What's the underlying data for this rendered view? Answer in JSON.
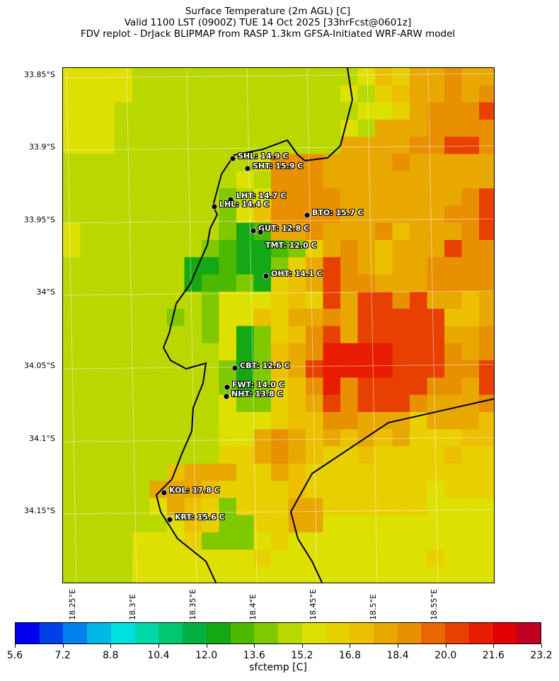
{
  "title": {
    "line1": "Surface Temperature (2m AGL) [C]",
    "line2": "Valid 1100 LST (0900Z) TUE 14 Oct 2025 [33hrFcst@0601z]",
    "line3": "FDV replot - DrJack BLIPMAP from RASP 1.3km GFSA-Initiated WRF-ARW model"
  },
  "lat_labels": [
    "33.85°S",
    "33.9°S",
    "33.95°S",
    "34°S",
    "34.05°S",
    "34.1°S",
    "34.15°S"
  ],
  "lon_labels": [
    "18.25°E",
    "18.3°E",
    "18.35°E",
    "18.4°E",
    "18.45°E",
    "18.5°E",
    "18.55°E"
  ],
  "colorbar": {
    "label": "sfctemp [C]",
    "ticks": [
      "5.6",
      "7.2",
      "8.8",
      "10.4",
      "12.0",
      "13.6",
      "15.2",
      "16.8",
      "18.4",
      "20.0",
      "21.6",
      "23.2"
    ],
    "colors": [
      "#0000ee",
      "#0040e8",
      "#0080ee",
      "#00b8e8",
      "#00e0dc",
      "#00d8a8",
      "#00c870",
      "#00b040",
      "#14a814",
      "#4cb800",
      "#80c800",
      "#b8d800",
      "#dde000",
      "#e8d000",
      "#ecc000",
      "#e8a800",
      "#e89000",
      "#e86800",
      "#e84000",
      "#e81c00",
      "#e00000",
      "#c00020"
    ]
  },
  "temperature_bins_legend": {
    "G": 8,
    "g": 9,
    "L": 10,
    "B": 11,
    "Y": 12,
    "y": 13,
    "o": 14,
    "O": 15,
    "a": 16,
    "r": 17,
    "R": 18,
    "X": 19
  },
  "temperature_grid": [
    "YYYYBBBBBBBBBBBBBYoyOOaOOa",
    "YYYYBBBBBBBBBBBBYByoOOaOaa",
    "YYYBBBBBBBBBBBBBBYYyOaaaRa",
    "YYYBBBBBBBBBBBBBYBOOOaaaaa",
    "YYYBBBBBBBBBBBBBOOOOaaRRaa",
    "BBBBBBBBBBBYaaaOOOOaOOOOO",
    "BBBBBBBBBBYBaaaOOOOOOOOOO",
    "BBBBBBBBBLBYaaaaOOOOOOOaR",
    "BBBBBBBBBLYoaaaaOOOOOOaaR",
    "YBBBBBBBBLGgOOaOOOaoOOOaR",
    "YBBBBBBBLgGGgLyOaOoOOORaa",
    "BBBBBBBGGgGGLyORaOoOOaaaa",
    "BBBBBBBGggLGyoORaaOOOaaaa",
    "BBBBBBBBLYYYyoyRORRaROOoO",
    "BBBBBBLBLYYoyOOaORRRRRooO",
    "BBBBBBBBLYGLyoaRORRRRROOa",
    "BBBBBBBBBYGLoOaXXXXRRRaOa",
    "BBBBBBBBBLGLoORXXXXRRRaaR",
    "BBBBBBBBBLGLyoaXaRRRRaaOR",
    "BBBBBBBBBYLLyoORaRRRaOOOa",
    "BBBBBBBBBYYYyooaaOOOyOOOo",
    "BBBBBBBBBYYOaOoOoOoOyyyoo",
    "BBBBBBBBByyOaOoyyoyyyyoyy",
    "BBBBBBoOOOyyOoyyyyyyyyyyy",
    "BBBBBOOOoyyyyoyyyyyyyYyyy",
    "BBBBBYOoyLyyyOOyyyyyyYYYY",
    "BBBBBBYoyLLyyOOYYYYYYYYYY",
    "BBBBYYYyLLLYyYYYYYYYYYYYY",
    "BBBBYYYYYYYyYYYYYYYYYyYYY",
    "BBBBYYYYYYYYYYYYYYYYYYYYY"
  ],
  "stations": [
    {
      "label": "SHL: 14.9 C"
    },
    {
      "label": "SHT: 15.9 C"
    },
    {
      "label": "LHT: 14.7 C"
    },
    {
      "label": "LHL: 14.4 C"
    },
    {
      "label": "BTO: 15.7 C"
    },
    {
      "label": "GUT: 12.8 C"
    },
    {
      "label": "TMT: 12.0 C"
    },
    {
      "label": "OHT: 14.1 C"
    },
    {
      "label": "CBT: 12.6 C"
    },
    {
      "label": "FWT: 14.0 C"
    },
    {
      "label": "NHT: 13.8 C"
    },
    {
      "label": "KOL: 17.8 C"
    },
    {
      "label": "KRT: 15.6 C"
    }
  ]
}
